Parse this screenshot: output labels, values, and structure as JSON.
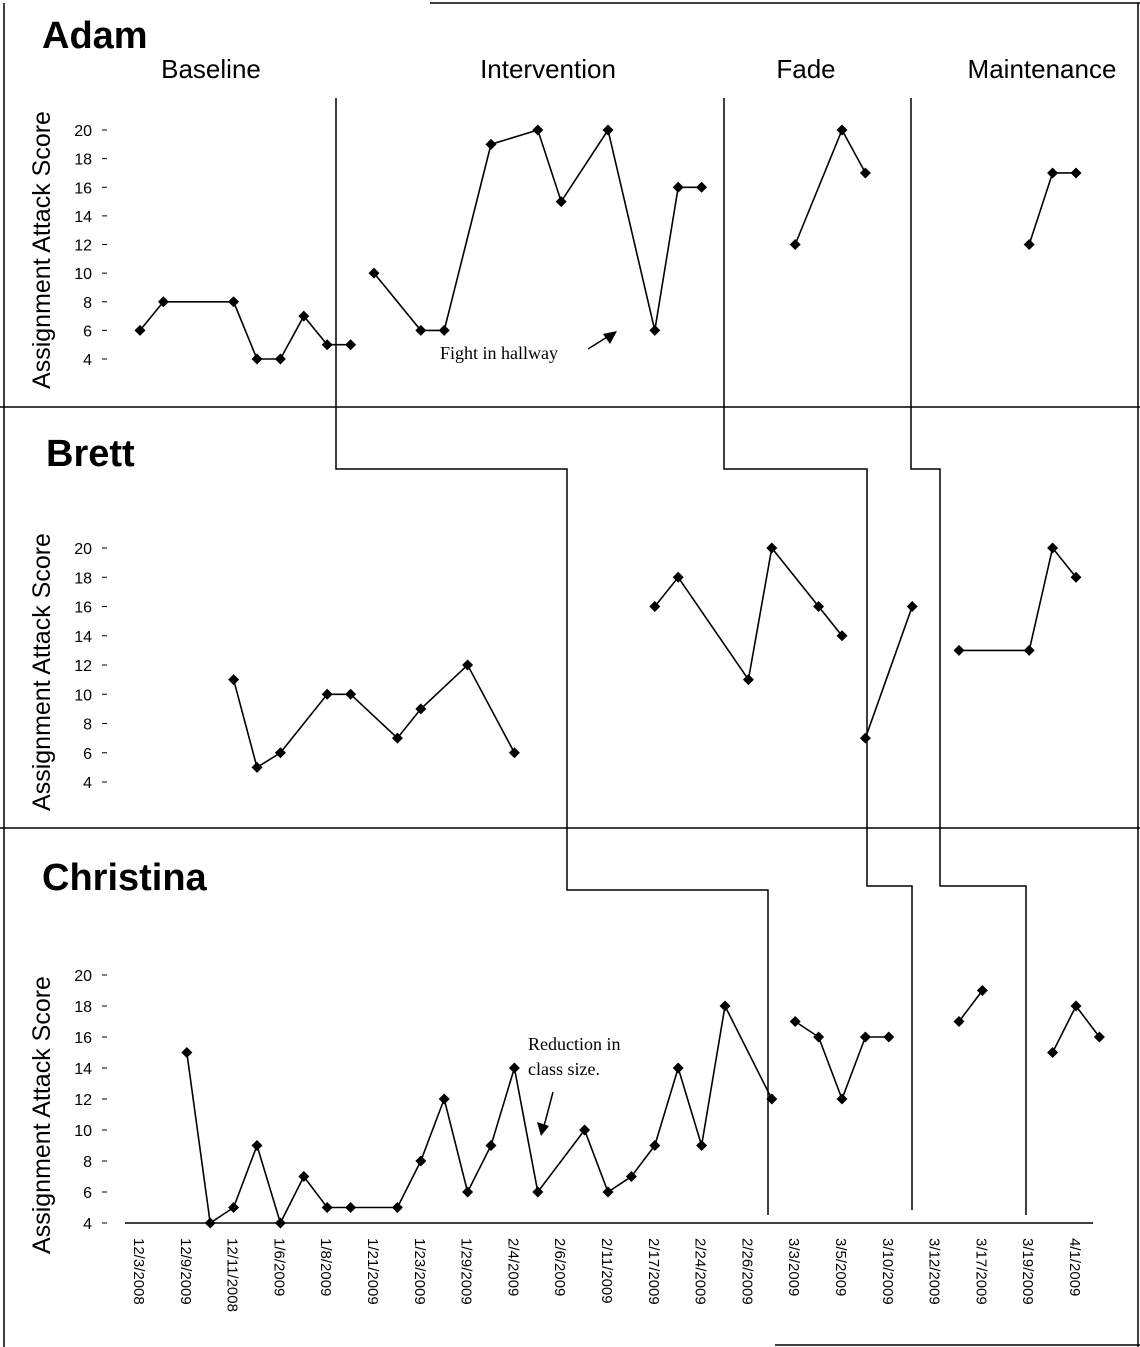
{
  "phases": [
    "Baseline",
    "Intervention",
    "Fade",
    "Maintenance"
  ],
  "x_dates": [
    "12/3/2008",
    "12/9/2009",
    "12/11/2008",
    "1/6/2009",
    "1/8/2009",
    "1/21/2009",
    "1/23/2009",
    "1/29/2009",
    "2/4/2009",
    "2/6/2009",
    "2/11/2009",
    "2/17/2009",
    "2/24/2009",
    "2/26/2009",
    "3/3/2009",
    "3/5/2009",
    "3/10/2009",
    "3/12/2009",
    "3/17/2009",
    "3/19/2009",
    "4/1/2009"
  ],
  "chart_data": [
    {
      "type": "line",
      "title": "Adam",
      "ylabel": "Assignment Attack Score",
      "yticks": [
        4,
        6,
        8,
        10,
        12,
        14,
        16,
        18,
        20
      ],
      "phases": [
        "Baseline",
        "Intervention",
        "Fade",
        "Maintenance"
      ],
      "segments": [
        {
          "phase": "Baseline",
          "points": [
            [
              0,
              6
            ],
            [
              0.5,
              8
            ],
            [
              2,
              8
            ],
            [
              2.5,
              4
            ],
            [
              3,
              4
            ],
            [
              3.5,
              7
            ],
            [
              4,
              5
            ],
            [
              4.5,
              5
            ]
          ]
        },
        {
          "phase": "Intervention",
          "points": [
            [
              5,
              10
            ],
            [
              6,
              6
            ],
            [
              6.5,
              6
            ],
            [
              7.5,
              19
            ],
            [
              8.5,
              20
            ],
            [
              9,
              15
            ],
            [
              10,
              20
            ],
            [
              11,
              6
            ],
            [
              11.5,
              16
            ],
            [
              12,
              16
            ]
          ]
        },
        {
          "phase": "Fade",
          "points": [
            [
              14,
              12
            ],
            [
              15,
              20
            ],
            [
              15.5,
              17
            ]
          ]
        },
        {
          "phase": "Maintenance",
          "points": [
            [
              19,
              12
            ],
            [
              19.5,
              17
            ],
            [
              20,
              17
            ]
          ]
        }
      ],
      "annotations": [
        {
          "text": "Fight in hallway"
        }
      ]
    },
    {
      "type": "line",
      "title": "Brett",
      "ylabel": "Assignment Attack Score",
      "yticks": [
        4,
        6,
        8,
        10,
        12,
        14,
        16,
        18,
        20
      ],
      "segments": [
        {
          "phase": "Baseline",
          "points": [
            [
              2,
              11
            ],
            [
              2.5,
              5
            ],
            [
              3,
              6
            ],
            [
              4,
              10
            ],
            [
              4.5,
              10
            ],
            [
              5.5,
              7
            ],
            [
              6,
              9
            ],
            [
              7,
              12
            ],
            [
              8,
              6
            ]
          ]
        },
        {
          "phase": "Intervention",
          "points": [
            [
              11,
              16
            ],
            [
              11.5,
              18
            ],
            [
              13,
              11
            ],
            [
              13.5,
              20
            ],
            [
              14.5,
              16
            ],
            [
              15,
              14
            ]
          ]
        },
        {
          "phase": "Fade",
          "points": [
            [
              15.5,
              7
            ],
            [
              16.5,
              16
            ]
          ]
        },
        {
          "phase": "Maintenance",
          "points": [
            [
              17.5,
              13
            ],
            [
              19,
              13
            ],
            [
              19.5,
              20
            ],
            [
              20,
              18
            ]
          ]
        }
      ]
    },
    {
      "type": "line",
      "title": "Christina",
      "ylabel": "Assignment Attack Score",
      "yticks": [
        4,
        6,
        8,
        10,
        12,
        14,
        16,
        18,
        20
      ],
      "xlabel": "",
      "segments": [
        {
          "phase": "Baseline",
          "points": [
            [
              1,
              15
            ],
            [
              1.5,
              4
            ],
            [
              2,
              5
            ],
            [
              2.5,
              9
            ],
            [
              3,
              4
            ],
            [
              3.5,
              7
            ],
            [
              4,
              5
            ],
            [
              4.5,
              5
            ],
            [
              5.5,
              5
            ],
            [
              6,
              8
            ],
            [
              6.5,
              12
            ],
            [
              7,
              6
            ],
            [
              7.5,
              9
            ],
            [
              8,
              14
            ],
            [
              8.5,
              6
            ],
            [
              9.5,
              10
            ],
            [
              10,
              6
            ],
            [
              10.5,
              7
            ],
            [
              11,
              9
            ],
            [
              11.5,
              14
            ],
            [
              12,
              9
            ],
            [
              12.5,
              18
            ],
            [
              13.5,
              12
            ]
          ]
        },
        {
          "phase": "Intervention",
          "points": [
            [
              14,
              17
            ],
            [
              14.5,
              16
            ],
            [
              15,
              12
            ],
            [
              15.5,
              16
            ],
            [
              16,
              16
            ]
          ]
        },
        {
          "phase": "Fade",
          "points": [
            [
              17.5,
              17
            ],
            [
              18,
              19
            ]
          ]
        },
        {
          "phase": "Maintenance",
          "points": [
            [
              19.5,
              15
            ],
            [
              20,
              18
            ],
            [
              20.5,
              16
            ]
          ]
        }
      ],
      "annotations": [
        {
          "text": "Reduction in class size."
        }
      ]
    }
  ],
  "labels": {
    "adam": "Adam",
    "brett": "Brett",
    "christina": "Christina",
    "ylabel": "Assignment Attack Score",
    "fight": "Fight in hallway",
    "reduction_line1": "Reduction in",
    "reduction_line2": "class size."
  }
}
